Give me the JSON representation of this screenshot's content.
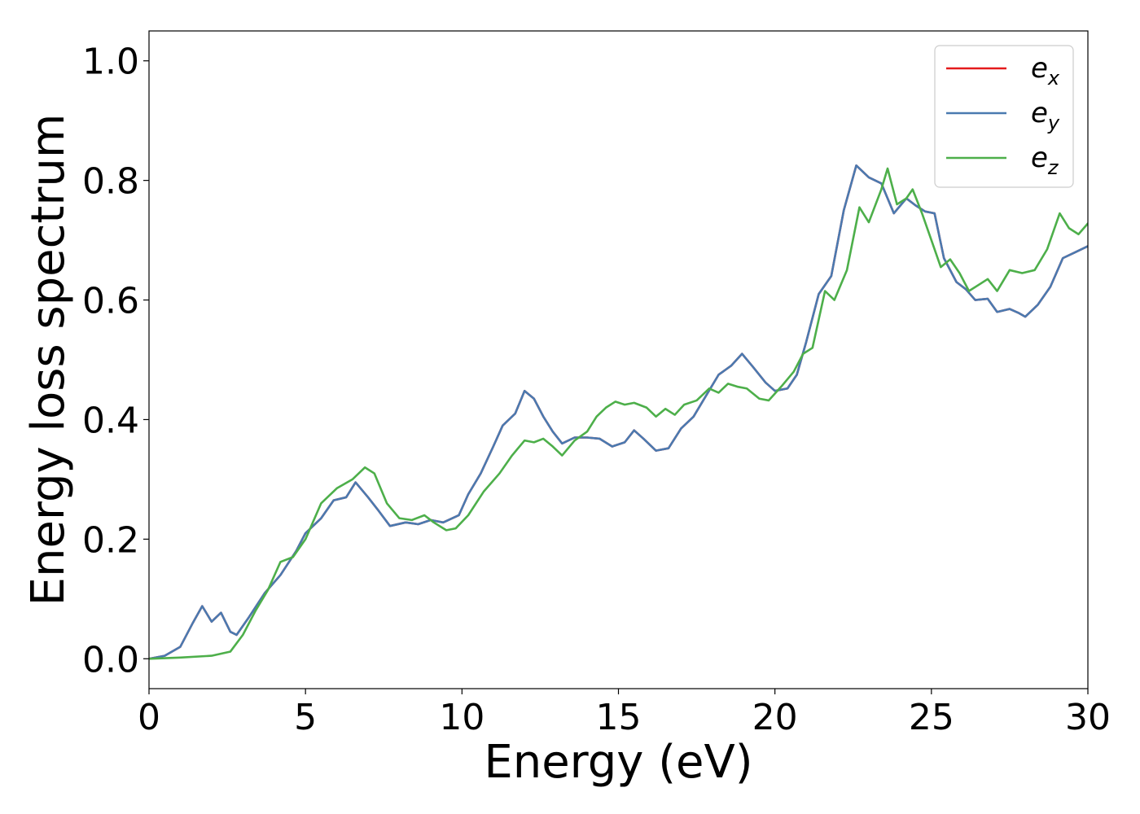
{
  "chart_data": {
    "type": "line",
    "xlabel": "Energy (eV)",
    "ylabel": "Energy loss spectrum",
    "xlim": [
      0,
      30
    ],
    "ylim": [
      -0.05,
      1.05
    ],
    "xticks": [
      0,
      5,
      10,
      15,
      20,
      25,
      30
    ],
    "xtick_labels": [
      "0",
      "5",
      "10",
      "15",
      "20",
      "25",
      "30"
    ],
    "yticks": [
      0.0,
      0.2,
      0.4,
      0.6,
      0.8,
      1.0
    ],
    "ytick_labels": [
      "0.0",
      "0.2",
      "0.4",
      "0.6",
      "0.8",
      "1.0"
    ],
    "grid": false,
    "legend_position": "top-right",
    "series": [
      {
        "name": "e_x",
        "legend_main": "e",
        "legend_sub": "x",
        "color": "#e41a1c",
        "points": [
          [
            0,
            0
          ],
          [
            0.5,
            0.005
          ],
          [
            1.0,
            0.02
          ],
          [
            1.4,
            0.06
          ],
          [
            1.7,
            0.088
          ],
          [
            2.0,
            0.062
          ],
          [
            2.3,
            0.077
          ],
          [
            2.6,
            0.045
          ],
          [
            2.8,
            0.04
          ],
          [
            3.2,
            0.07
          ],
          [
            3.7,
            0.11
          ],
          [
            4.2,
            0.14
          ],
          [
            4.7,
            0.18
          ],
          [
            5.0,
            0.21
          ],
          [
            5.5,
            0.235
          ],
          [
            5.9,
            0.265
          ],
          [
            6.3,
            0.27
          ],
          [
            6.6,
            0.295
          ],
          [
            7.0,
            0.27
          ],
          [
            7.3,
            0.25
          ],
          [
            7.7,
            0.222
          ],
          [
            8.2,
            0.228
          ],
          [
            8.6,
            0.225
          ],
          [
            9.0,
            0.232
          ],
          [
            9.4,
            0.228
          ],
          [
            9.9,
            0.24
          ],
          [
            10.2,
            0.275
          ],
          [
            10.6,
            0.31
          ],
          [
            11.0,
            0.355
          ],
          [
            11.3,
            0.39
          ],
          [
            11.7,
            0.41
          ],
          [
            12.0,
            0.448
          ],
          [
            12.3,
            0.435
          ],
          [
            12.6,
            0.405
          ],
          [
            12.9,
            0.38
          ],
          [
            13.2,
            0.36
          ],
          [
            13.6,
            0.37
          ],
          [
            14.0,
            0.37
          ],
          [
            14.4,
            0.368
          ],
          [
            14.8,
            0.355
          ],
          [
            15.2,
            0.362
          ],
          [
            15.5,
            0.382
          ],
          [
            15.8,
            0.368
          ],
          [
            16.2,
            0.348
          ],
          [
            16.6,
            0.352
          ],
          [
            17.0,
            0.385
          ],
          [
            17.4,
            0.405
          ],
          [
            17.8,
            0.44
          ],
          [
            18.2,
            0.475
          ],
          [
            18.6,
            0.49
          ],
          [
            18.95,
            0.51
          ],
          [
            19.3,
            0.488
          ],
          [
            19.7,
            0.462
          ],
          [
            20.0,
            0.448
          ],
          [
            20.4,
            0.452
          ],
          [
            20.7,
            0.475
          ],
          [
            21.0,
            0.53
          ],
          [
            21.4,
            0.61
          ],
          [
            21.8,
            0.64
          ],
          [
            22.2,
            0.75
          ],
          [
            22.6,
            0.825
          ],
          [
            23.0,
            0.805
          ],
          [
            23.4,
            0.795
          ],
          [
            23.8,
            0.745
          ],
          [
            24.2,
            0.77
          ],
          [
            24.5,
            0.758
          ],
          [
            24.8,
            0.748
          ],
          [
            25.1,
            0.745
          ],
          [
            25.4,
            0.67
          ],
          [
            25.8,
            0.63
          ],
          [
            26.1,
            0.618
          ],
          [
            26.4,
            0.6
          ],
          [
            26.8,
            0.602
          ],
          [
            27.1,
            0.58
          ],
          [
            27.5,
            0.585
          ],
          [
            27.8,
            0.578
          ],
          [
            28.0,
            0.572
          ],
          [
            28.4,
            0.592
          ],
          [
            28.8,
            0.622
          ],
          [
            29.2,
            0.67
          ],
          [
            29.6,
            0.68
          ],
          [
            30.0,
            0.69
          ]
        ]
      },
      {
        "name": "e_y",
        "legend_main": "e",
        "legend_sub": "y",
        "color": "#4a7ab0",
        "points": [
          [
            0,
            0
          ],
          [
            0.5,
            0.005
          ],
          [
            1.0,
            0.02
          ],
          [
            1.4,
            0.06
          ],
          [
            1.7,
            0.088
          ],
          [
            2.0,
            0.062
          ],
          [
            2.3,
            0.077
          ],
          [
            2.6,
            0.045
          ],
          [
            2.8,
            0.04
          ],
          [
            3.2,
            0.07
          ],
          [
            3.7,
            0.11
          ],
          [
            4.2,
            0.14
          ],
          [
            4.7,
            0.18
          ],
          [
            5.0,
            0.21
          ],
          [
            5.5,
            0.235
          ],
          [
            5.9,
            0.265
          ],
          [
            6.3,
            0.27
          ],
          [
            6.6,
            0.295
          ],
          [
            7.0,
            0.27
          ],
          [
            7.3,
            0.25
          ],
          [
            7.7,
            0.222
          ],
          [
            8.2,
            0.228
          ],
          [
            8.6,
            0.225
          ],
          [
            9.0,
            0.232
          ],
          [
            9.4,
            0.228
          ],
          [
            9.9,
            0.24
          ],
          [
            10.2,
            0.275
          ],
          [
            10.6,
            0.31
          ],
          [
            11.0,
            0.355
          ],
          [
            11.3,
            0.39
          ],
          [
            11.7,
            0.41
          ],
          [
            12.0,
            0.448
          ],
          [
            12.3,
            0.435
          ],
          [
            12.6,
            0.405
          ],
          [
            12.9,
            0.38
          ],
          [
            13.2,
            0.36
          ],
          [
            13.6,
            0.37
          ],
          [
            14.0,
            0.37
          ],
          [
            14.4,
            0.368
          ],
          [
            14.8,
            0.355
          ],
          [
            15.2,
            0.362
          ],
          [
            15.5,
            0.382
          ],
          [
            15.8,
            0.368
          ],
          [
            16.2,
            0.348
          ],
          [
            16.6,
            0.352
          ],
          [
            17.0,
            0.385
          ],
          [
            17.4,
            0.405
          ],
          [
            17.8,
            0.44
          ],
          [
            18.2,
            0.475
          ],
          [
            18.6,
            0.49
          ],
          [
            18.95,
            0.51
          ],
          [
            19.3,
            0.488
          ],
          [
            19.7,
            0.462
          ],
          [
            20.0,
            0.448
          ],
          [
            20.4,
            0.452
          ],
          [
            20.7,
            0.475
          ],
          [
            21.0,
            0.53
          ],
          [
            21.4,
            0.61
          ],
          [
            21.8,
            0.64
          ],
          [
            22.2,
            0.75
          ],
          [
            22.6,
            0.825
          ],
          [
            23.0,
            0.805
          ],
          [
            23.4,
            0.795
          ],
          [
            23.8,
            0.745
          ],
          [
            24.2,
            0.77
          ],
          [
            24.5,
            0.758
          ],
          [
            24.8,
            0.748
          ],
          [
            25.1,
            0.745
          ],
          [
            25.4,
            0.67
          ],
          [
            25.8,
            0.63
          ],
          [
            26.1,
            0.618
          ],
          [
            26.4,
            0.6
          ],
          [
            26.8,
            0.602
          ],
          [
            27.1,
            0.58
          ],
          [
            27.5,
            0.585
          ],
          [
            27.8,
            0.578
          ],
          [
            28.0,
            0.572
          ],
          [
            28.4,
            0.592
          ],
          [
            28.8,
            0.622
          ],
          [
            29.2,
            0.67
          ],
          [
            29.6,
            0.68
          ],
          [
            30.0,
            0.69
          ]
        ]
      },
      {
        "name": "e_z",
        "legend_main": "e",
        "legend_sub": "z",
        "color": "#4daf4a",
        "points": [
          [
            0,
            0
          ],
          [
            1.0,
            0.002
          ],
          [
            2.0,
            0.005
          ],
          [
            2.6,
            0.012
          ],
          [
            3.0,
            0.04
          ],
          [
            3.4,
            0.08
          ],
          [
            3.8,
            0.115
          ],
          [
            4.2,
            0.162
          ],
          [
            4.6,
            0.17
          ],
          [
            5.0,
            0.2
          ],
          [
            5.5,
            0.26
          ],
          [
            6.0,
            0.285
          ],
          [
            6.5,
            0.3
          ],
          [
            6.9,
            0.32
          ],
          [
            7.2,
            0.31
          ],
          [
            7.6,
            0.26
          ],
          [
            8.0,
            0.235
          ],
          [
            8.4,
            0.232
          ],
          [
            8.8,
            0.24
          ],
          [
            9.1,
            0.228
          ],
          [
            9.5,
            0.215
          ],
          [
            9.8,
            0.218
          ],
          [
            10.2,
            0.24
          ],
          [
            10.7,
            0.28
          ],
          [
            11.2,
            0.31
          ],
          [
            11.6,
            0.34
          ],
          [
            12.0,
            0.365
          ],
          [
            12.3,
            0.362
          ],
          [
            12.6,
            0.368
          ],
          [
            12.9,
            0.355
          ],
          [
            13.2,
            0.34
          ],
          [
            13.6,
            0.365
          ],
          [
            14.0,
            0.38
          ],
          [
            14.3,
            0.405
          ],
          [
            14.6,
            0.42
          ],
          [
            14.9,
            0.43
          ],
          [
            15.2,
            0.425
          ],
          [
            15.5,
            0.428
          ],
          [
            15.9,
            0.42
          ],
          [
            16.2,
            0.405
          ],
          [
            16.5,
            0.418
          ],
          [
            16.8,
            0.408
          ],
          [
            17.1,
            0.425
          ],
          [
            17.5,
            0.432
          ],
          [
            17.9,
            0.452
          ],
          [
            18.2,
            0.445
          ],
          [
            18.5,
            0.46
          ],
          [
            18.8,
            0.455
          ],
          [
            19.1,
            0.452
          ],
          [
            19.5,
            0.435
          ],
          [
            19.8,
            0.432
          ],
          [
            20.2,
            0.455
          ],
          [
            20.6,
            0.48
          ],
          [
            20.9,
            0.51
          ],
          [
            21.2,
            0.52
          ],
          [
            21.6,
            0.615
          ],
          [
            21.9,
            0.6
          ],
          [
            22.3,
            0.65
          ],
          [
            22.7,
            0.755
          ],
          [
            23.0,
            0.73
          ],
          [
            23.4,
            0.785
          ],
          [
            23.6,
            0.82
          ],
          [
            23.9,
            0.76
          ],
          [
            24.2,
            0.77
          ],
          [
            24.4,
            0.785
          ],
          [
            24.7,
            0.745
          ],
          [
            25.0,
            0.7
          ],
          [
            25.3,
            0.655
          ],
          [
            25.6,
            0.668
          ],
          [
            25.9,
            0.645
          ],
          [
            26.2,
            0.615
          ],
          [
            26.5,
            0.625
          ],
          [
            26.8,
            0.635
          ],
          [
            27.1,
            0.615
          ],
          [
            27.5,
            0.65
          ],
          [
            27.9,
            0.645
          ],
          [
            28.3,
            0.65
          ],
          [
            28.7,
            0.685
          ],
          [
            29.1,
            0.745
          ],
          [
            29.4,
            0.72
          ],
          [
            29.7,
            0.71
          ],
          [
            30.0,
            0.728
          ]
        ]
      }
    ]
  }
}
